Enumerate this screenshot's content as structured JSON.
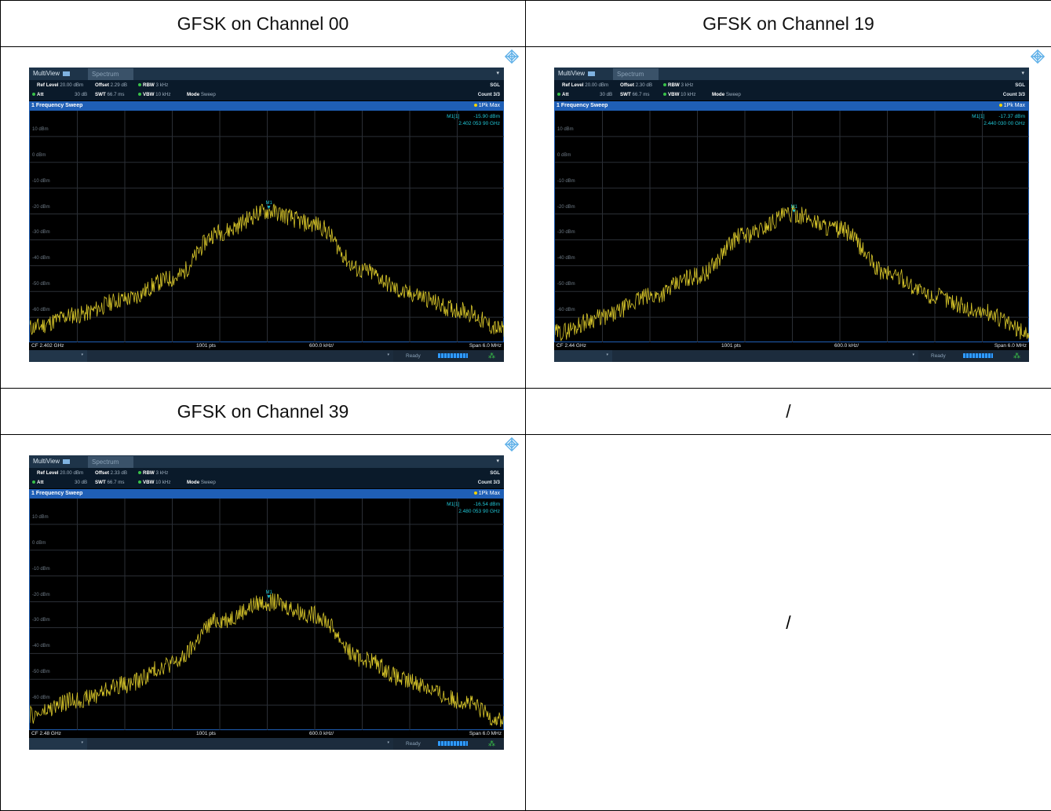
{
  "headers": [
    "GFSK on Channel 00",
    "GFSK on Channel 19",
    "GFSK on Channel 39",
    "/"
  ],
  "empty_cell_text": "/",
  "common": {
    "tab_multiview": "MultiView",
    "tab_spectrum": "Spectrum",
    "ref_level_label": "Ref Level",
    "ref_level": "20.00 dBm",
    "offset_label": "Offset",
    "rbw_label": "RBW",
    "rbw": "3 kHz",
    "sgl": "SGL",
    "att_label": "Att",
    "att": "30 dB",
    "swt_label": "SWT",
    "swt": "66.7 ms",
    "vbw_label": "VBW",
    "vbw": "10 kHz",
    "mode_label": "Mode",
    "mode": "Sweep",
    "count": "Count 3/3",
    "sweep_title": "1 Frequency Sweep",
    "trace_label": "1Pk Max",
    "marker_label": "M1[1]",
    "marker_tag": "M1",
    "pts": "1001 pts",
    "div": "600.0 kHz/",
    "span": "Span 6.0 MHz",
    "status_ready": "Ready",
    "y_labels": [
      "10 dBm",
      "0 dBm",
      "-10 dBm",
      "-20 dBm",
      "-30 dBm",
      "-40 dBm",
      "-50 dBm",
      "-60 dBm"
    ],
    "colors": {
      "trace": "#d9c72a",
      "marker": "#21c8d8",
      "title_bar": "#1f5fb6"
    }
  },
  "panels": [
    {
      "offset": "2.29 dB",
      "marker_level": "-15.90 dBm",
      "marker_freq": "2.402 053 90 GHz",
      "cf": "CF 2.402 GHz",
      "seed": 11
    },
    {
      "offset": "2.30 dB",
      "marker_level": "-17.37 dBm",
      "marker_freq": "2.440 030 00 GHz",
      "cf": "CF 2.44 GHz",
      "seed": 29
    },
    {
      "offset": "2.33 dB",
      "marker_level": "-16.54 dBm",
      "marker_freq": "2.480 053 90 GHz",
      "cf": "CF 2.48 GHz",
      "seed": 47
    }
  ],
  "chart_data": [
    {
      "type": "line",
      "title": "1 Frequency Sweep",
      "xlabel": "",
      "ylabel": "",
      "x_center": "2.402 GHz",
      "span_mhz": 6.0,
      "ylim": [
        -70,
        20
      ],
      "x_mhz": [
        -3,
        -2.4,
        -1.8,
        -1.2,
        -0.6,
        0,
        0.6,
        1.2,
        1.8,
        2.4,
        3
      ],
      "y_dbm": [
        -64,
        -59,
        -53,
        -45,
        -27,
        -19,
        -24,
        -42,
        -51,
        -57,
        -65
      ],
      "marker": {
        "freq": "2.402 053 90 GHz",
        "level_dbm": -15.9
      }
    },
    {
      "type": "line",
      "title": "1 Frequency Sweep",
      "xlabel": "",
      "ylabel": "",
      "x_center": "2.44 GHz",
      "span_mhz": 6.0,
      "ylim": [
        -70,
        20
      ],
      "x_mhz": [
        -3,
        -2.4,
        -1.8,
        -1.2,
        -0.6,
        0,
        0.6,
        1.2,
        1.8,
        2.4,
        3
      ],
      "y_dbm": [
        -66,
        -60,
        -52,
        -44,
        -28,
        -20,
        -26,
        -43,
        -52,
        -58,
        -66
      ],
      "marker": {
        "freq": "2.440 030 00 GHz",
        "level_dbm": -17.37
      }
    },
    {
      "type": "line",
      "title": "1 Frequency Sweep",
      "xlabel": "",
      "ylabel": "",
      "x_center": "2.48 GHz",
      "span_mhz": 6.0,
      "ylim": [
        -70,
        20
      ],
      "x_mhz": [
        -3,
        -2.4,
        -1.8,
        -1.2,
        -0.6,
        0,
        0.6,
        1.2,
        1.8,
        2.4,
        3
      ],
      "y_dbm": [
        -64,
        -58,
        -52,
        -44,
        -27,
        -20,
        -25,
        -42,
        -51,
        -58,
        -66
      ],
      "marker": {
        "freq": "2.480 053 90 GHz",
        "level_dbm": -16.54
      }
    }
  ]
}
